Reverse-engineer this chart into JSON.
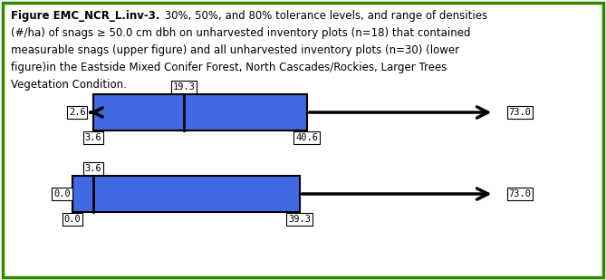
{
  "caption_lines": [
    [
      "Figure EMC_NCR_L.inv-3.",
      " 30%, 50%, and 80% tolerance levels, and range of densities"
    ],
    [
      "",
      "(#/ha) of snags ≥ 50.0 cm dbh on unharvested inventory plots (n=18) that contained"
    ],
    [
      "",
      "measurable snags (upper figure) and all unharvested inventory plots (n=30) (lower"
    ],
    [
      "",
      "figure)in the Eastside Mixed Conifer Forest, North Cascades/Rockies, Larger Trees"
    ],
    [
      "",
      "Vegetation Condition."
    ]
  ],
  "upper": {
    "min": 2.6,
    "q1": 3.6,
    "median": 19.3,
    "q3": 40.6,
    "max": 73.0
  },
  "lower": {
    "min": 0.0,
    "q1": 0.0,
    "median": 3.6,
    "q3": 39.3,
    "max": 73.0
  },
  "box_color": "#4169E1",
  "box_edge_color": "#000000",
  "arrow_color": "#000000",
  "label_bg": "#ffffff",
  "label_edge": "#000000",
  "background_color": "#ffffff",
  "border_color": "#2d8a00",
  "scale_min": 0.0,
  "scale_max": 80.0,
  "font_size_caption": 8.5,
  "font_size_label": 7.5
}
